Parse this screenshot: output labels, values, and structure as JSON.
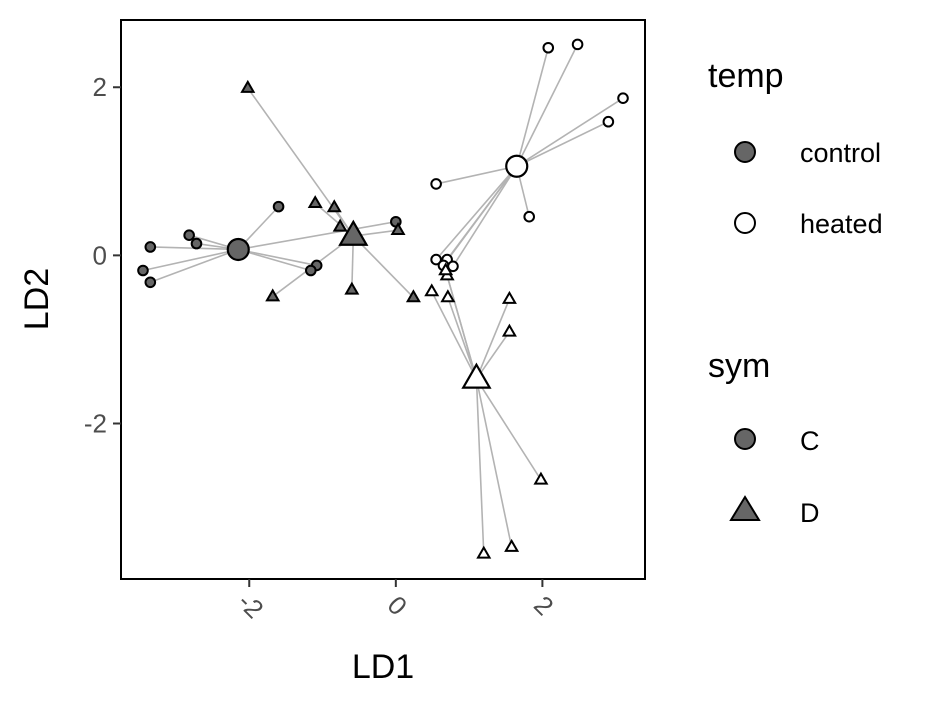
{
  "chart_data": {
    "type": "scatter",
    "xlabel": "LD1",
    "ylabel": "LD2",
    "xlim": [
      -3.75,
      3.4
    ],
    "ylim": [
      -3.85,
      2.8
    ],
    "x_ticks": [
      -2,
      0,
      2
    ],
    "y_ticks": [
      -2,
      0,
      2
    ],
    "grid": false,
    "legend_placement": "right",
    "colors": {
      "control": "#666666",
      "heated": "#ffffff",
      "outline": "#000000",
      "segment": "#b3b3b3"
    },
    "legend": {
      "temp": {
        "title": "temp",
        "items": [
          "control",
          "heated"
        ]
      },
      "sym": {
        "title": "sym",
        "items": [
          "C",
          "D"
        ]
      }
    },
    "centroids": [
      {
        "temp": "control",
        "sym": "C",
        "x": -2.15,
        "y": 0.07
      },
      {
        "temp": "control",
        "sym": "D",
        "x": -0.58,
        "y": 0.23
      },
      {
        "temp": "heated",
        "sym": "C",
        "x": 1.65,
        "y": 1.06
      },
      {
        "temp": "heated",
        "sym": "D",
        "x": 1.1,
        "y": -1.47
      }
    ],
    "series": [
      {
        "temp": "control",
        "sym": "C",
        "points": [
          [
            -3.35,
            0.1
          ],
          [
            -3.45,
            -0.18
          ],
          [
            -3.35,
            -0.32
          ],
          [
            -2.82,
            0.24
          ],
          [
            -2.72,
            0.14
          ],
          [
            -1.6,
            0.58
          ],
          [
            -1.08,
            -0.12
          ],
          [
            -1.16,
            -0.18
          ],
          [
            0,
            0.4
          ]
        ]
      },
      {
        "temp": "control",
        "sym": "D",
        "points": [
          [
            -2.02,
            1.99
          ],
          [
            -1.1,
            0.62
          ],
          [
            -0.84,
            0.57
          ],
          [
            -0.76,
            0.34
          ],
          [
            0.03,
            0.3
          ],
          [
            -1.68,
            -0.49
          ],
          [
            -0.6,
            -0.41
          ],
          [
            0.24,
            -0.5
          ]
        ]
      },
      {
        "temp": "heated",
        "sym": "C",
        "points": [
          [
            2.08,
            2.47
          ],
          [
            2.48,
            2.51
          ],
          [
            3.1,
            1.87
          ],
          [
            2.9,
            1.59
          ],
          [
            0.55,
            0.85
          ],
          [
            1.82,
            0.46
          ],
          [
            0.55,
            -0.05
          ],
          [
            0.7,
            -0.05
          ],
          [
            0.65,
            -0.12
          ],
          [
            0.78,
            -0.13
          ]
        ]
      },
      {
        "temp": "heated",
        "sym": "D",
        "points": [
          [
            0.49,
            -0.43
          ],
          [
            0.71,
            -0.5
          ],
          [
            0.7,
            -0.24
          ],
          [
            0.68,
            -0.18
          ],
          [
            1.55,
            -0.52
          ],
          [
            1.55,
            -0.91
          ],
          [
            1.98,
            -2.67
          ],
          [
            1.2,
            -3.55
          ],
          [
            1.58,
            -3.47
          ]
        ]
      }
    ]
  }
}
